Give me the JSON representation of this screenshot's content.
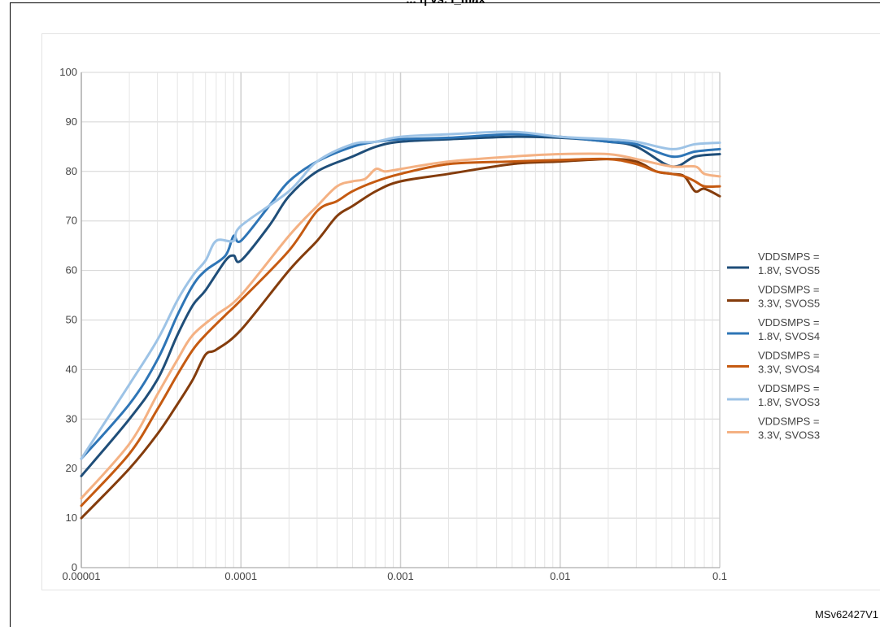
{
  "title_fragment": "... η vs. I_max",
  "figure_code": "MSv62427V1",
  "chart_data": {
    "type": "line",
    "xscale": "log",
    "xlim": [
      1e-05,
      0.1
    ],
    "ylim": [
      0,
      100
    ],
    "x_ticks": [
      1e-05,
      0.0001,
      0.001,
      0.01,
      0.1
    ],
    "x_tick_labels": [
      "0.00001",
      "0.0001",
      "0.001",
      "0.01",
      "0.1"
    ],
    "y_ticks": [
      0,
      10,
      20,
      30,
      40,
      50,
      60,
      70,
      80,
      90,
      100
    ],
    "y_tick_labels": [
      "0",
      "10",
      "20",
      "30",
      "40",
      "50",
      "60",
      "70",
      "80",
      "90",
      "100"
    ],
    "grid": true,
    "legend_position": "right",
    "series": [
      {
        "name": "VDDSMPS = 1.8V, SVOS5",
        "color": "#1f4e79",
        "points": [
          [
            1e-05,
            18.5
          ],
          [
            2e-05,
            30
          ],
          [
            3e-05,
            38
          ],
          [
            4e-05,
            47
          ],
          [
            5e-05,
            53
          ],
          [
            6e-05,
            56
          ],
          [
            8e-05,
            62
          ],
          [
            9e-05,
            63
          ],
          [
            0.0001,
            62
          ],
          [
            0.00015,
            69
          ],
          [
            0.0002,
            75
          ],
          [
            0.0003,
            80
          ],
          [
            0.0005,
            83
          ],
          [
            0.0007,
            85
          ],
          [
            0.001,
            86
          ],
          [
            0.002,
            86.5
          ],
          [
            0.005,
            87
          ],
          [
            0.01,
            86.8
          ],
          [
            0.02,
            86
          ],
          [
            0.03,
            85
          ],
          [
            0.05,
            81
          ],
          [
            0.07,
            83
          ],
          [
            0.1,
            83.5
          ]
        ]
      },
      {
        "name": "VDDSMPS = 3.3V, SVOS5",
        "color": "#843c0c",
        "points": [
          [
            1e-05,
            10
          ],
          [
            2e-05,
            20
          ],
          [
            3e-05,
            27
          ],
          [
            4e-05,
            33
          ],
          [
            5e-05,
            38
          ],
          [
            6e-05,
            43
          ],
          [
            7e-05,
            44
          ],
          [
            0.0001,
            48
          ],
          [
            0.0002,
            60
          ],
          [
            0.0003,
            66
          ],
          [
            0.0004,
            71
          ],
          [
            0.0005,
            73
          ],
          [
            0.0007,
            76
          ],
          [
            0.001,
            78
          ],
          [
            0.002,
            79.5
          ],
          [
            0.005,
            81.5
          ],
          [
            0.01,
            82
          ],
          [
            0.02,
            82.5
          ],
          [
            0.03,
            82
          ],
          [
            0.04,
            80
          ],
          [
            0.05,
            79.5
          ],
          [
            0.06,
            79
          ],
          [
            0.07,
            76
          ],
          [
            0.08,
            76.5
          ],
          [
            0.1,
            75
          ]
        ]
      },
      {
        "name": "VDDSMPS = 1.8V, SVOS4",
        "color": "#2e75b6",
        "points": [
          [
            1e-05,
            22
          ],
          [
            2e-05,
            33
          ],
          [
            3e-05,
            42
          ],
          [
            4e-05,
            51
          ],
          [
            5e-05,
            57
          ],
          [
            6e-05,
            60
          ],
          [
            8e-05,
            63
          ],
          [
            9e-05,
            67
          ],
          [
            0.0001,
            66
          ],
          [
            0.00015,
            73
          ],
          [
            0.0002,
            78
          ],
          [
            0.0003,
            82
          ],
          [
            0.0005,
            85
          ],
          [
            0.0007,
            86
          ],
          [
            0.001,
            86.5
          ],
          [
            0.002,
            86.8
          ],
          [
            0.005,
            87.5
          ],
          [
            0.01,
            87
          ],
          [
            0.02,
            86
          ],
          [
            0.03,
            85.5
          ],
          [
            0.05,
            83
          ],
          [
            0.07,
            84
          ],
          [
            0.1,
            84.5
          ]
        ]
      },
      {
        "name": "VDDSMPS = 3.3V, SVOS4",
        "color": "#c55a11",
        "points": [
          [
            1e-05,
            12.5
          ],
          [
            2e-05,
            23
          ],
          [
            3e-05,
            32
          ],
          [
            4e-05,
            39
          ],
          [
            5e-05,
            44
          ],
          [
            6e-05,
            47
          ],
          [
            8e-05,
            51
          ],
          [
            0.0001,
            54
          ],
          [
            0.0002,
            64
          ],
          [
            0.0003,
            72
          ],
          [
            0.0004,
            74
          ],
          [
            0.0005,
            76
          ],
          [
            0.0007,
            78
          ],
          [
            0.001,
            79.5
          ],
          [
            0.002,
            81.5
          ],
          [
            0.005,
            82
          ],
          [
            0.01,
            82.3
          ],
          [
            0.02,
            82.5
          ],
          [
            0.03,
            81.5
          ],
          [
            0.04,
            80
          ],
          [
            0.05,
            79.5
          ],
          [
            0.06,
            79
          ],
          [
            0.07,
            78
          ],
          [
            0.08,
            77
          ],
          [
            0.1,
            77
          ]
        ]
      },
      {
        "name": "VDDSMPS = 1.8V, SVOS3",
        "color": "#9dc3e6",
        "points": [
          [
            1e-05,
            22
          ],
          [
            2e-05,
            37
          ],
          [
            3e-05,
            46
          ],
          [
            4e-05,
            54
          ],
          [
            5e-05,
            59
          ],
          [
            6e-05,
            62
          ],
          [
            7e-05,
            66
          ],
          [
            9e-05,
            66
          ],
          [
            0.0001,
            69
          ],
          [
            0.0002,
            76
          ],
          [
            0.0003,
            82
          ],
          [
            0.0005,
            85.5
          ],
          [
            0.0007,
            86
          ],
          [
            0.001,
            87
          ],
          [
            0.002,
            87.5
          ],
          [
            0.005,
            88
          ],
          [
            0.01,
            87
          ],
          [
            0.02,
            86.5
          ],
          [
            0.03,
            86
          ],
          [
            0.05,
            84.5
          ],
          [
            0.07,
            85.5
          ],
          [
            0.1,
            85.8
          ]
        ]
      },
      {
        "name": "VDDSMPS = 3.3V, SVOS3",
        "color": "#f4b183",
        "points": [
          [
            1e-05,
            14
          ],
          [
            2e-05,
            25
          ],
          [
            3e-05,
            35
          ],
          [
            4e-05,
            42
          ],
          [
            5e-05,
            47
          ],
          [
            7e-05,
            51
          ],
          [
            0.0001,
            55
          ],
          [
            0.0002,
            67
          ],
          [
            0.0003,
            73
          ],
          [
            0.0004,
            77
          ],
          [
            0.0005,
            78
          ],
          [
            0.0006,
            78.5
          ],
          [
            0.0007,
            80.5
          ],
          [
            0.0008,
            80
          ],
          [
            0.001,
            80.5
          ],
          [
            0.002,
            82
          ],
          [
            0.005,
            83
          ],
          [
            0.01,
            83.5
          ],
          [
            0.02,
            83.5
          ],
          [
            0.03,
            82.5
          ],
          [
            0.05,
            81
          ],
          [
            0.07,
            81
          ],
          [
            0.08,
            79.5
          ],
          [
            0.1,
            79
          ]
        ]
      }
    ]
  }
}
